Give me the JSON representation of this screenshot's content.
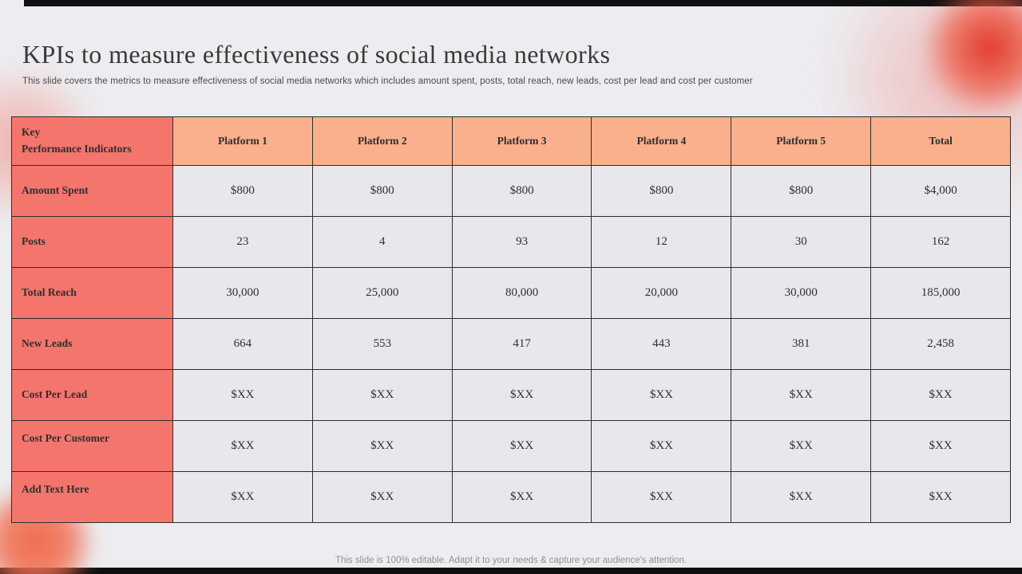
{
  "slide": {
    "title": "KPIs to measure effectiveness of social media networks",
    "subtitle": "This slide covers the metrics to measure effectiveness of social media networks which includes amount spent, posts, total reach, new leads, cost per lead and cost per customer",
    "footer": "This slide is 100% editable. Adapt it to your needs & capture your audience's attention."
  },
  "table": {
    "header": [
      "Key\nPerformance Indicators",
      "Platform 1",
      "Platform 2",
      "Platform 3",
      "Platform 4",
      "Platform 5",
      "Total"
    ],
    "rows": [
      {
        "label": "Amount Spent",
        "values": [
          "$800",
          "$800",
          "$800",
          "$800",
          "$800",
          "$4,000"
        ]
      },
      {
        "label": "Posts",
        "values": [
          "23",
          "4",
          "93",
          "12",
          "30",
          "162"
        ]
      },
      {
        "label": "Total Reach",
        "values": [
          "30,000",
          "25,000",
          "80,000",
          "20,000",
          "30,000",
          "185,000"
        ]
      },
      {
        "label": "New Leads",
        "values": [
          "664",
          "553",
          "417",
          "443",
          "381",
          "2,458"
        ]
      },
      {
        "label": "Cost Per Lead",
        "values": [
          "$XX",
          "$XX",
          "$XX",
          "$XX",
          "$XX",
          "$XX"
        ]
      },
      {
        "label": "Cost Per Customer",
        "values": [
          "$XX",
          "$XX",
          "$XX",
          "$XX",
          "$XX",
          "$XX"
        ]
      },
      {
        "label": "Add Text Here",
        "values": [
          "$XX",
          "$XX",
          "$XX",
          "$XX",
          "$XX",
          "$XX"
        ]
      }
    ]
  },
  "colors": {
    "coral": "#F4756C",
    "peach": "#FAB08D",
    "cell": "#E8E8EC",
    "ink": "#2F2F2F",
    "bar": "#101010",
    "bg": "#EDEDF1",
    "red_glow": "#E23A2E"
  }
}
